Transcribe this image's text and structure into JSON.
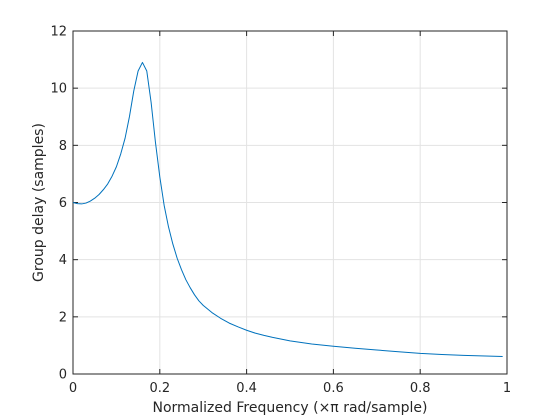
{
  "chart_data": {
    "type": "line",
    "title": "",
    "xlabel": "Normalized Frequency (×π rad/sample)",
    "ylabel": "Group delay (samples)",
    "xlim": [
      0,
      1
    ],
    "ylim": [
      0,
      12
    ],
    "xticks": [
      0,
      0.2,
      0.4,
      0.6,
      0.8,
      1
    ],
    "xtick_labels": [
      "0",
      "0.2",
      "0.4",
      "0.6",
      "0.8",
      "1"
    ],
    "yticks": [
      0,
      2,
      4,
      6,
      8,
      10,
      12
    ],
    "ytick_labels": [
      "0",
      "2",
      "4",
      "6",
      "8",
      "10",
      "12"
    ],
    "grid": true,
    "legend": "none",
    "series": [
      {
        "color": "#0072BD",
        "x": [
          0,
          0.01,
          0.02,
          0.03,
          0.04,
          0.05,
          0.06,
          0.07,
          0.08,
          0.09,
          0.1,
          0.11,
          0.12,
          0.13,
          0.14,
          0.15,
          0.16,
          0.17,
          0.18,
          0.19,
          0.2,
          0.21,
          0.22,
          0.23,
          0.24,
          0.25,
          0.26,
          0.27,
          0.28,
          0.29,
          0.3,
          0.32,
          0.34,
          0.36,
          0.38,
          0.4,
          0.42,
          0.44,
          0.46,
          0.48,
          0.5,
          0.55,
          0.6,
          0.65,
          0.7,
          0.75,
          0.8,
          0.85,
          0.9,
          0.95,
          0.99
        ],
        "y": [
          6.0,
          5.96,
          5.95,
          5.98,
          6.05,
          6.15,
          6.28,
          6.45,
          6.65,
          6.92,
          7.25,
          7.7,
          8.25,
          9.0,
          9.9,
          10.6,
          10.9,
          10.6,
          9.5,
          8.1,
          6.9,
          5.9,
          5.15,
          4.55,
          4.05,
          3.65,
          3.3,
          3.02,
          2.77,
          2.56,
          2.4,
          2.15,
          1.95,
          1.78,
          1.65,
          1.53,
          1.43,
          1.35,
          1.28,
          1.22,
          1.16,
          1.05,
          0.97,
          0.9,
          0.84,
          0.78,
          0.72,
          0.68,
          0.65,
          0.63,
          0.61
        ]
      }
    ]
  }
}
